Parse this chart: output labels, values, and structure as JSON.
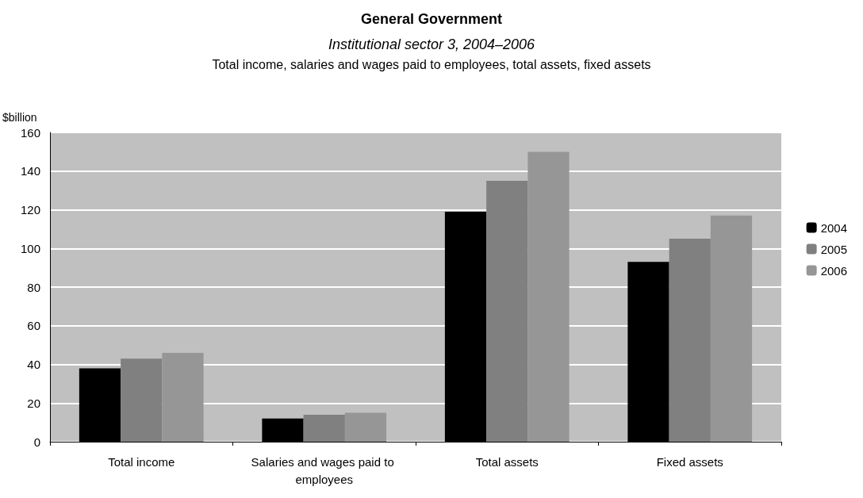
{
  "chart_data": {
    "type": "bar",
    "title": "General Government",
    "subtitle": "Institutional sector 3, 2004–2006",
    "annotations": [
      "Total income, salaries and wages paid to employees, total assets, fixed assets"
    ],
    "ylabel": "$billion",
    "categories": [
      "Total income",
      "Salaries and wages paid to employees",
      "Total assets",
      "Fixed assets"
    ],
    "series": [
      {
        "name": "2004",
        "color": "#000000",
        "values": [
          38,
          12,
          119,
          93
        ]
      },
      {
        "name": "2005",
        "color": "#808080",
        "values": [
          43,
          14,
          135,
          105
        ]
      },
      {
        "name": "2006",
        "color": "#969696",
        "values": [
          46,
          15,
          150,
          117
        ]
      }
    ],
    "ylim": [
      0,
      160
    ],
    "yticks": [
      0,
      20,
      40,
      60,
      80,
      100,
      120,
      140,
      160
    ],
    "grid": "y",
    "legend": "right"
  }
}
